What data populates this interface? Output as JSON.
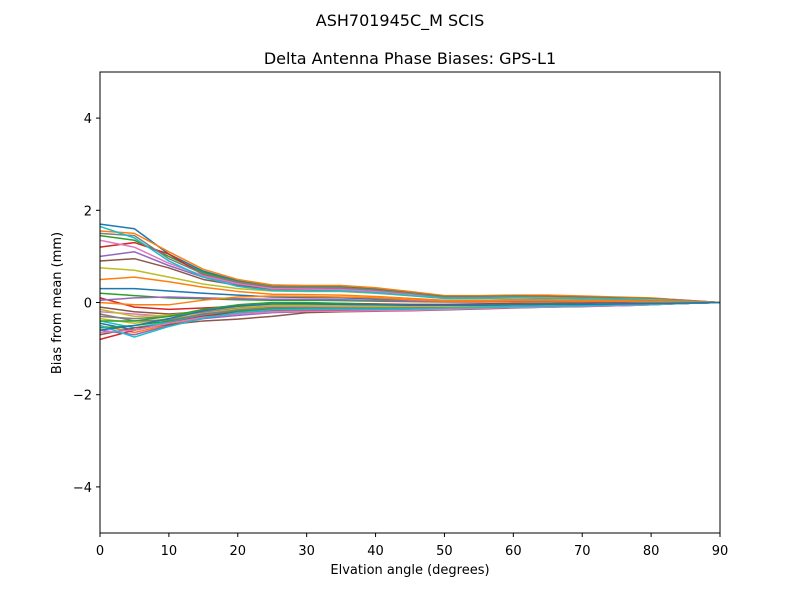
{
  "figure": {
    "suptitle": "ASH701945C_M    SCIS"
  },
  "chart_data": {
    "type": "line",
    "title": "Delta Antenna Phase Biases: GPS-L1",
    "xlabel": "Elvation angle (degrees)",
    "ylabel": "Bias from mean (mm)",
    "xlim": [
      0,
      90
    ],
    "ylim": [
      -5,
      5
    ],
    "xticks": [
      0,
      10,
      20,
      30,
      40,
      50,
      60,
      70,
      80,
      90
    ],
    "yticks": [
      -4,
      -2,
      0,
      2,
      4
    ],
    "xtick_labels": [
      "0",
      "10",
      "20",
      "30",
      "40",
      "50",
      "60",
      "70",
      "80",
      "90"
    ],
    "ytick_labels": [
      "−4",
      "−2",
      "0",
      "2",
      "4"
    ],
    "grid": false,
    "legend": "none",
    "x": [
      0,
      5,
      10,
      15,
      20,
      25,
      30,
      35,
      40,
      45,
      50,
      55,
      60,
      65,
      70,
      75,
      80,
      85,
      90
    ],
    "series": [
      {
        "color": "#1f77b4",
        "values": [
          1.7,
          1.6,
          1.05,
          0.68,
          0.47,
          0.38,
          0.36,
          0.36,
          0.3,
          0.22,
          0.14,
          0.13,
          0.14,
          0.14,
          0.12,
          0.11,
          0.09,
          0.05,
          0.0
        ]
      },
      {
        "color": "#ff7f0e",
        "values": [
          1.55,
          1.5,
          1.1,
          0.72,
          0.5,
          0.38,
          0.37,
          0.37,
          0.32,
          0.24,
          0.15,
          0.15,
          0.16,
          0.16,
          0.14,
          0.12,
          0.1,
          0.05,
          0.0
        ]
      },
      {
        "color": "#2ca02c",
        "values": [
          1.45,
          1.35,
          1.0,
          0.65,
          0.45,
          0.35,
          0.34,
          0.33,
          0.28,
          0.21,
          0.13,
          0.13,
          0.14,
          0.13,
          0.12,
          0.1,
          0.08,
          0.04,
          0.0
        ]
      },
      {
        "color": "#d62728",
        "values": [
          1.2,
          1.3,
          1.05,
          0.6,
          0.42,
          0.33,
          0.32,
          0.32,
          0.27,
          0.2,
          0.12,
          0.12,
          0.13,
          0.13,
          0.11,
          0.09,
          0.08,
          0.04,
          0.0
        ]
      },
      {
        "color": "#9467bd",
        "values": [
          1.0,
          1.1,
          0.8,
          0.55,
          0.4,
          0.31,
          0.3,
          0.29,
          0.25,
          0.18,
          0.11,
          0.11,
          0.12,
          0.12,
          0.1,
          0.09,
          0.07,
          0.04,
          0.0
        ]
      },
      {
        "color": "#8c564b",
        "values": [
          0.9,
          0.95,
          0.75,
          0.5,
          0.37,
          0.29,
          0.28,
          0.27,
          0.23,
          0.17,
          0.1,
          0.1,
          0.11,
          0.11,
          0.09,
          0.08,
          0.06,
          0.03,
          0.0
        ]
      },
      {
        "color": "#e377c2",
        "values": [
          1.35,
          1.2,
          0.85,
          0.58,
          0.41,
          0.3,
          0.29,
          0.28,
          0.24,
          0.18,
          0.11,
          0.11,
          0.12,
          0.11,
          0.1,
          0.08,
          0.07,
          0.03,
          0.0
        ]
      },
      {
        "color": "#7f7f7f",
        "values": [
          1.5,
          1.45,
          0.95,
          0.62,
          0.44,
          0.34,
          0.33,
          0.32,
          0.27,
          0.2,
          0.12,
          0.12,
          0.13,
          0.12,
          0.11,
          0.09,
          0.08,
          0.04,
          0.0
        ]
      },
      {
        "color": "#bcbd22",
        "values": [
          0.75,
          0.7,
          0.55,
          0.4,
          0.3,
          0.25,
          0.24,
          0.24,
          0.2,
          0.15,
          0.09,
          0.09,
          0.1,
          0.1,
          0.08,
          0.07,
          0.06,
          0.03,
          0.0
        ]
      },
      {
        "color": "#17becf",
        "values": [
          1.65,
          1.4,
          0.9,
          0.55,
          0.35,
          0.26,
          0.25,
          0.25,
          0.21,
          0.15,
          0.09,
          0.09,
          0.1,
          0.09,
          0.08,
          0.07,
          0.05,
          0.03,
          0.0
        ]
      },
      {
        "color": "#1f77b4",
        "values": [
          0.3,
          0.3,
          0.25,
          0.2,
          0.16,
          0.12,
          0.11,
          0.1,
          0.08,
          0.05,
          0.03,
          0.04,
          0.05,
          0.05,
          0.04,
          0.04,
          0.03,
          0.02,
          0.0
        ]
      },
      {
        "color": "#ff7f0e",
        "values": [
          0.5,
          0.55,
          0.45,
          0.33,
          0.24,
          0.18,
          0.17,
          0.16,
          0.13,
          0.09,
          0.05,
          0.05,
          0.06,
          0.06,
          0.05,
          0.04,
          0.03,
          0.02,
          0.0
        ]
      },
      {
        "color": "#2ca02c",
        "values": [
          0.2,
          0.15,
          0.1,
          0.08,
          0.06,
          0.05,
          0.05,
          0.04,
          0.03,
          0.02,
          0.01,
          0.01,
          0.02,
          0.02,
          0.01,
          0.01,
          0.01,
          0.0,
          0.0
        ]
      },
      {
        "color": "#d62728",
        "values": [
          0.1,
          -0.1,
          -0.15,
          -0.12,
          -0.08,
          -0.04,
          -0.02,
          -0.02,
          -0.03,
          -0.04,
          -0.04,
          -0.03,
          -0.02,
          -0.02,
          -0.02,
          -0.01,
          -0.01,
          0.0,
          0.0
        ]
      },
      {
        "color": "#9467bd",
        "values": [
          0.05,
          0.1,
          0.12,
          0.1,
          0.08,
          0.07,
          0.07,
          0.06,
          0.05,
          0.03,
          0.02,
          0.02,
          0.03,
          0.03,
          0.02,
          0.02,
          0.02,
          0.01,
          0.0
        ]
      },
      {
        "color": "#8c564b",
        "values": [
          -0.1,
          -0.2,
          -0.25,
          -0.2,
          -0.12,
          -0.08,
          -0.06,
          -0.06,
          -0.06,
          -0.06,
          -0.06,
          -0.05,
          -0.04,
          -0.03,
          -0.03,
          -0.02,
          -0.02,
          -0.01,
          0.0
        ]
      },
      {
        "color": "#e377c2",
        "values": [
          -0.2,
          -0.25,
          -0.3,
          -0.22,
          -0.14,
          -0.09,
          -0.08,
          -0.08,
          -0.08,
          -0.08,
          -0.07,
          -0.06,
          -0.05,
          -0.04,
          -0.04,
          -0.03,
          -0.02,
          -0.01,
          0.0
        ]
      },
      {
        "color": "#7f7f7f",
        "values": [
          -0.3,
          -0.35,
          -0.3,
          -0.2,
          -0.1,
          -0.05,
          -0.05,
          -0.06,
          -0.07,
          -0.08,
          -0.08,
          -0.07,
          -0.06,
          -0.05,
          -0.04,
          -0.03,
          -0.02,
          -0.01,
          0.0
        ]
      },
      {
        "color": "#bcbd22",
        "values": [
          -0.35,
          -0.45,
          -0.35,
          -0.25,
          -0.14,
          -0.1,
          -0.1,
          -0.11,
          -0.11,
          -0.11,
          -0.1,
          -0.09,
          -0.07,
          -0.06,
          -0.05,
          -0.04,
          -0.03,
          -0.01,
          0.0
        ]
      },
      {
        "color": "#17becf",
        "values": [
          -0.4,
          -0.55,
          -0.42,
          -0.28,
          -0.17,
          -0.12,
          -0.12,
          -0.13,
          -0.13,
          -0.12,
          -0.11,
          -0.1,
          -0.08,
          -0.07,
          -0.06,
          -0.05,
          -0.03,
          -0.02,
          0.0
        ]
      },
      {
        "color": "#1f77b4",
        "values": [
          -0.45,
          -0.6,
          -0.45,
          -0.3,
          -0.2,
          -0.15,
          -0.15,
          -0.15,
          -0.15,
          -0.14,
          -0.12,
          -0.11,
          -0.09,
          -0.08,
          -0.07,
          -0.05,
          -0.04,
          -0.02,
          0.0
        ]
      },
      {
        "color": "#ff7f0e",
        "values": [
          -0.5,
          -0.65,
          -0.48,
          -0.33,
          -0.25,
          -0.2,
          -0.18,
          -0.17,
          -0.17,
          -0.16,
          -0.14,
          -0.12,
          -0.1,
          -0.09,
          -0.08,
          -0.06,
          -0.04,
          -0.02,
          0.0
        ]
      },
      {
        "color": "#2ca02c",
        "values": [
          -0.55,
          -0.5,
          -0.4,
          -0.25,
          -0.18,
          -0.13,
          -0.13,
          -0.14,
          -0.14,
          -0.13,
          -0.12,
          -0.1,
          -0.09,
          -0.08,
          -0.07,
          -0.05,
          -0.04,
          -0.02,
          0.0
        ]
      },
      {
        "color": "#d62728",
        "values": [
          -0.8,
          -0.6,
          -0.45,
          -0.3,
          -0.22,
          -0.17,
          -0.16,
          -0.16,
          -0.16,
          -0.15,
          -0.13,
          -0.12,
          -0.1,
          -0.09,
          -0.08,
          -0.06,
          -0.04,
          -0.02,
          0.0
        ]
      },
      {
        "color": "#9467bd",
        "values": [
          -0.6,
          -0.7,
          -0.5,
          -0.35,
          -0.28,
          -0.22,
          -0.2,
          -0.19,
          -0.18,
          -0.17,
          -0.15,
          -0.13,
          -0.11,
          -0.1,
          -0.08,
          -0.07,
          -0.05,
          -0.02,
          0.0
        ]
      },
      {
        "color": "#8c564b",
        "values": [
          -0.7,
          -0.55,
          -0.48,
          -0.4,
          -0.36,
          -0.3,
          -0.22,
          -0.2,
          -0.19,
          -0.18,
          -0.16,
          -0.14,
          -0.12,
          -0.1,
          -0.09,
          -0.07,
          -0.05,
          -0.02,
          0.0
        ]
      },
      {
        "color": "#e377c2",
        "values": [
          -0.65,
          -0.6,
          -0.45,
          -0.32,
          -0.25,
          -0.2,
          -0.19,
          -0.19,
          -0.18,
          -0.17,
          -0.15,
          -0.13,
          -0.11,
          -0.1,
          -0.08,
          -0.07,
          -0.05,
          -0.02,
          0.0
        ]
      },
      {
        "color": "#7f7f7f",
        "values": [
          -0.25,
          -0.4,
          -0.38,
          -0.26,
          -0.16,
          -0.11,
          -0.11,
          -0.12,
          -0.12,
          -0.12,
          -0.11,
          -0.1,
          -0.08,
          -0.07,
          -0.06,
          -0.05,
          -0.03,
          -0.02,
          0.0
        ]
      },
      {
        "color": "#bcbd22",
        "values": [
          -0.15,
          -0.3,
          -0.28,
          -0.18,
          -0.1,
          -0.06,
          -0.06,
          -0.07,
          -0.08,
          -0.08,
          -0.08,
          -0.07,
          -0.06,
          -0.05,
          -0.04,
          -0.03,
          -0.02,
          -0.01,
          0.0
        ]
      },
      {
        "color": "#17becf",
        "values": [
          -0.5,
          -0.75,
          -0.52,
          -0.34,
          -0.22,
          -0.16,
          -0.15,
          -0.15,
          -0.15,
          -0.14,
          -0.12,
          -0.11,
          -0.09,
          -0.08,
          -0.07,
          -0.05,
          -0.04,
          -0.02,
          0.0
        ]
      },
      {
        "color": "#2ca02c",
        "values": [
          -0.4,
          -0.4,
          -0.3,
          -0.15,
          -0.05,
          0.0,
          0.0,
          -0.02,
          -0.04,
          -0.06,
          -0.06,
          -0.06,
          -0.05,
          -0.04,
          -0.04,
          -0.03,
          -0.02,
          -0.01,
          0.0
        ]
      },
      {
        "color": "#ff7f0e",
        "values": [
          0.0,
          -0.05,
          -0.05,
          0.05,
          0.12,
          0.14,
          0.13,
          0.12,
          0.1,
          0.06,
          0.03,
          0.03,
          0.04,
          0.04,
          0.03,
          0.03,
          0.02,
          0.01,
          0.0
        ]
      },
      {
        "color": "#1f77b4",
        "values": [
          -0.6,
          -0.5,
          -0.35,
          -0.18,
          -0.08,
          -0.03,
          -0.03,
          -0.04,
          -0.05,
          -0.06,
          -0.06,
          -0.06,
          -0.05,
          -0.04,
          -0.04,
          -0.03,
          -0.02,
          -0.01,
          0.0
        ]
      }
    ]
  }
}
